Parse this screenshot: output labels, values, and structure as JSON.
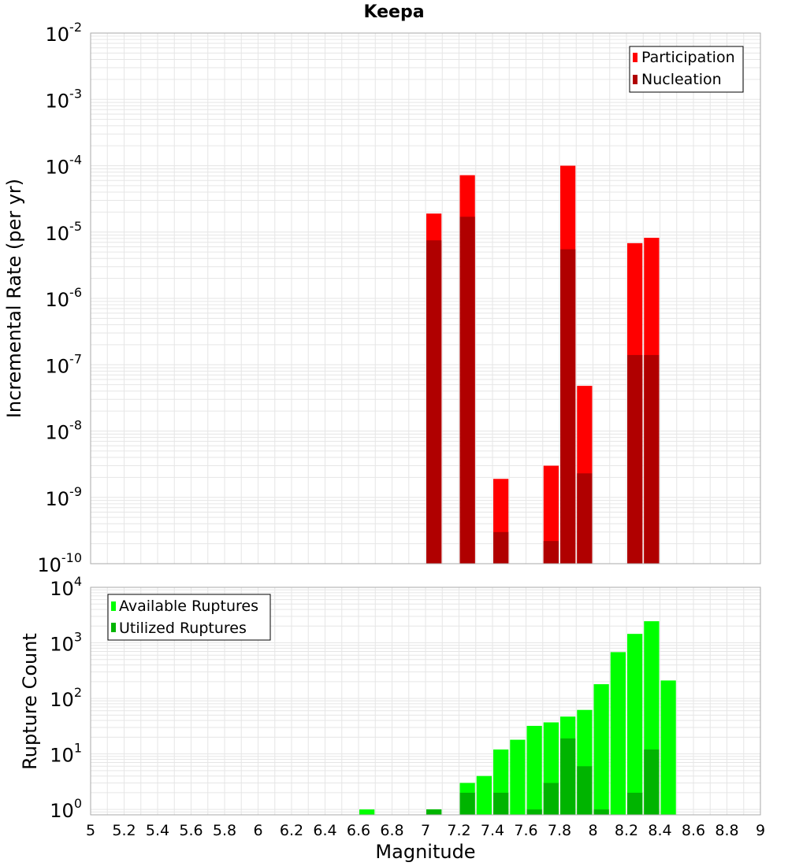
{
  "colors": {
    "participation": "#ff0000",
    "nucleation": "#b00000",
    "available": "#00ff00",
    "utilized": "#00b400",
    "grid": "#e6e6e6",
    "background": "#ffffff",
    "frame": "#aaaaaa"
  },
  "chart_data": [
    {
      "type": "bar",
      "title": "Keepa",
      "xlabel": "",
      "ylabel": "Incremental Rate (per yr)",
      "yscale": "log",
      "xlim": [
        5,
        9
      ],
      "ylim": [
        1e-10,
        0.01
      ],
      "y_tick_labels": [
        {
          "base": "10",
          "exp": "-10"
        },
        {
          "base": "10",
          "exp": "-9"
        },
        {
          "base": "10",
          "exp": "-8"
        },
        {
          "base": "10",
          "exp": "-7"
        },
        {
          "base": "10",
          "exp": "-6"
        },
        {
          "base": "10",
          "exp": "-5"
        },
        {
          "base": "10",
          "exp": "-4"
        },
        {
          "base": "10",
          "exp": "-3"
        },
        {
          "base": "10",
          "exp": "-2"
        }
      ],
      "grid": true,
      "legend_position": "top-right",
      "series": [
        {
          "name": "Participation",
          "x": [
            7.05,
            7.25,
            7.45,
            7.75,
            7.85,
            7.95,
            8.25,
            8.35
          ],
          "values": [
            1.9e-05,
            7.2e-05,
            1.9e-09,
            3e-09,
            0.0001,
            4.8e-08,
            6.8e-06,
            8.2e-06
          ]
        },
        {
          "name": "Nucleation",
          "x": [
            7.05,
            7.25,
            7.45,
            7.75,
            7.85,
            7.95,
            8.25,
            8.35
          ],
          "values": [
            7.5e-06,
            1.7e-05,
            3e-10,
            2.2e-10,
            5.5e-06,
            2.3e-09,
            1.4e-07,
            1.4e-07
          ]
        }
      ]
    },
    {
      "type": "bar",
      "title": "",
      "xlabel": "Magnitude",
      "ylabel": "Rupture Count",
      "yscale": "log",
      "xlim": [
        5,
        9
      ],
      "ylim": [
        0.8,
        10000
      ],
      "x_tick_labels": [
        "5",
        "5.2",
        "5.4",
        "5.6",
        "5.8",
        "6",
        "6.2",
        "6.4",
        "6.6",
        "6.8",
        "7",
        "7.2",
        "7.4",
        "7.6",
        "7.8",
        "8",
        "8.2",
        "8.4",
        "8.6",
        "8.8",
        "9"
      ],
      "y_tick_labels": [
        {
          "base": "10",
          "exp": "0"
        },
        {
          "base": "10",
          "exp": "1"
        },
        {
          "base": "10",
          "exp": "2"
        },
        {
          "base": "10",
          "exp": "3"
        },
        {
          "base": "10",
          "exp": "4"
        }
      ],
      "grid": true,
      "legend_position": "top-left",
      "series": [
        {
          "name": "Available Ruptures",
          "x": [
            6.65,
            7.05,
            7.25,
            7.35,
            7.45,
            7.55,
            7.65,
            7.75,
            7.85,
            7.95,
            8.05,
            8.15,
            8.25,
            8.35,
            8.45
          ],
          "values": [
            1,
            1,
            3,
            4,
            12,
            18,
            32,
            37,
            47,
            62,
            180,
            680,
            1450,
            2450,
            210
          ]
        },
        {
          "name": "Utilized Ruptures",
          "x": [
            7.05,
            7.25,
            7.45,
            7.65,
            7.75,
            7.85,
            7.95,
            8.05,
            8.25,
            8.35
          ],
          "values": [
            1,
            2,
            2,
            1,
            3,
            19,
            6,
            1,
            2,
            12
          ]
        }
      ]
    }
  ]
}
